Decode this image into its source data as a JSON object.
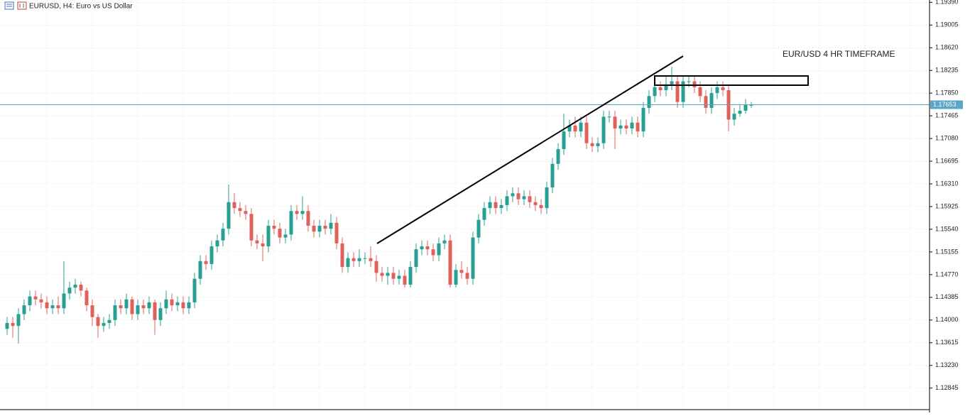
{
  "chart_data": {
    "type": "candlestick",
    "title": "EURUSD, H4:  Euro vs US Dollar",
    "annotation": "EUR/USD 4 HR TIMEFRAME",
    "bull_color": "#26a092",
    "bear_color": "#e0605c",
    "grid": true,
    "ylim": [
      1.1248,
      1.1943
    ],
    "yticks": [
      {
        "value": 1.1939,
        "label": "1.19390"
      },
      1.19005,
      {
        "value": 1.1862,
        "label": "1.18620"
      },
      1.18235,
      {
        "value": 1.1785,
        "label": "1.17850"
      },
      1.17465,
      {
        "value": 1.1708,
        "label": "1.17080"
      },
      1.16695,
      {
        "value": 1.1631,
        "label": "1.16310"
      },
      1.15925,
      {
        "value": 1.1554,
        "label": "1.15540"
      },
      1.15155,
      {
        "value": 1.1477,
        "label": "1.14770"
      },
      1.14385,
      {
        "value": 1.14,
        "label": "1.14000"
      },
      1.13615,
      {
        "value": 1.1323,
        "label": "1.13230"
      },
      1.12845
    ],
    "current_price": 1.17653,
    "current_price_color": "#5aa6c8",
    "open": [
      1.1385,
      1.1395,
      1.139,
      1.141,
      1.1425,
      1.144,
      1.1435,
      1.143,
      1.142,
      1.1425,
      1.142,
      1.1445,
      1.1455,
      1.146,
      1.145,
      1.1425,
      1.1405,
      1.139,
      1.1395,
      1.14,
      1.1425,
      1.142,
      1.1435,
      1.141,
      1.1425,
      1.142,
      1.143,
      1.14,
      1.142,
      1.1435,
      1.1425,
      1.143,
      1.142,
      1.143,
      1.147,
      1.15,
      1.1495,
      1.1525,
      1.1535,
      1.1555,
      1.16,
      1.159,
      1.1585,
      1.158,
      1.1535,
      1.153,
      1.1525,
      1.156,
      1.1555,
      1.154,
      1.1545,
      1.1585,
      1.158,
      1.1585,
      1.156,
      1.155,
      1.156,
      1.1555,
      1.1565,
      1.153,
      1.149,
      1.1505,
      1.15,
      1.1505,
      1.1505,
      1.15,
      1.148,
      1.1475,
      1.148,
      1.147,
      1.1475,
      1.146,
      1.149,
      1.152,
      1.1525,
      1.152,
      1.151,
      1.153,
      1.1535,
      1.146,
      1.1485,
      1.148,
      1.147,
      1.154,
      1.157,
      1.159,
      1.16,
      1.159,
      1.1595,
      1.161,
      1.1615,
      1.1605,
      1.161,
      1.16,
      1.1595,
      1.159,
      1.1625,
      1.1665,
      1.169,
      1.172,
      1.173,
      1.172,
      1.1735,
      1.17,
      1.1695,
      1.17,
      1.1745,
      1.1745,
      1.1725,
      1.173,
      1.1725,
      1.1735,
      1.172,
      1.176,
      1.178,
      1.1795,
      1.179,
      1.18,
      1.1805,
      1.177,
      1.1805,
      1.1805,
      1.1795,
      1.178,
      1.176,
      1.1785,
      1.1795,
      1.179,
      1.174,
      1.175,
      1.1755,
      1.1765
    ],
    "high": [
      1.1405,
      1.1405,
      1.142,
      1.1435,
      1.145,
      1.145,
      1.1445,
      1.144,
      1.1435,
      1.144,
      1.15,
      1.1465,
      1.147,
      1.1465,
      1.1455,
      1.1435,
      1.141,
      1.1405,
      1.141,
      1.1435,
      1.1435,
      1.1445,
      1.144,
      1.1435,
      1.1435,
      1.144,
      1.1435,
      1.143,
      1.145,
      1.1445,
      1.144,
      1.144,
      1.144,
      1.148,
      1.151,
      1.151,
      1.1535,
      1.1545,
      1.1565,
      1.163,
      1.1615,
      1.16,
      1.1595,
      1.159,
      1.1545,
      1.1545,
      1.157,
      1.157,
      1.1565,
      1.1555,
      1.1595,
      1.1595,
      1.161,
      1.1595,
      1.157,
      1.157,
      1.157,
      1.158,
      1.1575,
      1.154,
      1.1515,
      1.1515,
      1.152,
      1.1515,
      1.1525,
      1.151,
      1.149,
      1.149,
      1.149,
      1.1485,
      1.1485,
      1.15,
      1.153,
      1.1535,
      1.1535,
      1.153,
      1.154,
      1.1545,
      1.1545,
      1.1495,
      1.15,
      1.149,
      1.155,
      1.158,
      1.16,
      1.161,
      1.161,
      1.1605,
      1.162,
      1.1625,
      1.1625,
      1.162,
      1.162,
      1.161,
      1.1605,
      1.1635,
      1.1675,
      1.17,
      1.175,
      1.174,
      1.1745,
      1.1745,
      1.1745,
      1.171,
      1.171,
      1.1755,
      1.1755,
      1.1755,
      1.174,
      1.174,
      1.1745,
      1.1745,
      1.177,
      1.179,
      1.1805,
      1.1805,
      1.1815,
      1.183,
      1.1815,
      1.1815,
      1.1815,
      1.1815,
      1.1805,
      1.179,
      1.1795,
      1.1805,
      1.1805,
      1.18,
      1.176,
      1.1765,
      1.1775,
      1.177
    ],
    "low": [
      1.1375,
      1.137,
      1.136,
      1.14,
      1.1415,
      1.1425,
      1.142,
      1.141,
      1.141,
      1.141,
      1.141,
      1.1435,
      1.1445,
      1.144,
      1.1415,
      1.139,
      1.137,
      1.138,
      1.1385,
      1.139,
      1.141,
      1.141,
      1.14,
      1.14,
      1.141,
      1.141,
      1.1375,
      1.139,
      1.141,
      1.1415,
      1.1415,
      1.141,
      1.141,
      1.142,
      1.146,
      1.1485,
      1.1485,
      1.1515,
      1.1525,
      1.1545,
      1.158,
      1.1575,
      1.157,
      1.1525,
      1.152,
      1.15,
      1.1515,
      1.1545,
      1.153,
      1.153,
      1.1535,
      1.157,
      1.157,
      1.155,
      1.154,
      1.154,
      1.1545,
      1.1545,
      1.152,
      1.148,
      1.148,
      1.149,
      1.149,
      1.1495,
      1.149,
      1.1465,
      1.1465,
      1.146,
      1.146,
      1.146,
      1.1455,
      1.1455,
      1.148,
      1.151,
      1.151,
      1.15,
      1.15,
      1.152,
      1.1455,
      1.1455,
      1.147,
      1.146,
      1.146,
      1.153,
      1.156,
      1.158,
      1.158,
      1.158,
      1.1585,
      1.16,
      1.1595,
      1.1595,
      1.159,
      1.1585,
      1.158,
      1.158,
      1.1615,
      1.1655,
      1.168,
      1.171,
      1.171,
      1.171,
      1.169,
      1.1685,
      1.1685,
      1.169,
      1.1735,
      1.169,
      1.1715,
      1.1715,
      1.1715,
      1.171,
      1.171,
      1.175,
      1.177,
      1.178,
      1.178,
      1.179,
      1.176,
      1.176,
      1.1795,
      1.1785,
      1.177,
      1.175,
      1.175,
      1.1775,
      1.178,
      1.172,
      1.173,
      1.1745,
      1.175,
      1.176
    ],
    "close": [
      1.1395,
      1.139,
      1.141,
      1.1425,
      1.144,
      1.1435,
      1.143,
      1.142,
      1.1425,
      1.142,
      1.1445,
      1.1455,
      1.146,
      1.145,
      1.1425,
      1.1405,
      1.139,
      1.1395,
      1.14,
      1.1425,
      1.142,
      1.1435,
      1.141,
      1.1425,
      1.142,
      1.143,
      1.14,
      1.142,
      1.1435,
      1.1425,
      1.143,
      1.142,
      1.143,
      1.147,
      1.15,
      1.1495,
      1.1525,
      1.1535,
      1.1555,
      1.16,
      1.159,
      1.1585,
      1.158,
      1.1535,
      1.153,
      1.1525,
      1.156,
      1.1555,
      1.154,
      1.1545,
      1.1585,
      1.158,
      1.1585,
      1.156,
      1.155,
      1.156,
      1.1555,
      1.1565,
      1.153,
      1.149,
      1.1505,
      1.15,
      1.1505,
      1.1505,
      1.15,
      1.148,
      1.1475,
      1.148,
      1.147,
      1.1475,
      1.146,
      1.149,
      1.152,
      1.1525,
      1.152,
      1.151,
      1.153,
      1.1535,
      1.146,
      1.1485,
      1.148,
      1.147,
      1.154,
      1.157,
      1.159,
      1.16,
      1.159,
      1.1595,
      1.161,
      1.1615,
      1.1605,
      1.161,
      1.16,
      1.1595,
      1.159,
      1.1625,
      1.1665,
      1.169,
      1.172,
      1.173,
      1.172,
      1.1735,
      1.17,
      1.1695,
      1.17,
      1.1745,
      1.1745,
      1.1725,
      1.173,
      1.1725,
      1.1735,
      1.172,
      1.176,
      1.178,
      1.1795,
      1.179,
      1.18,
      1.1805,
      1.177,
      1.1805,
      1.1805,
      1.1795,
      1.178,
      1.176,
      1.1785,
      1.1795,
      1.179,
      1.174,
      1.175,
      1.1755,
      1.1765,
      1.1765
    ]
  }
}
